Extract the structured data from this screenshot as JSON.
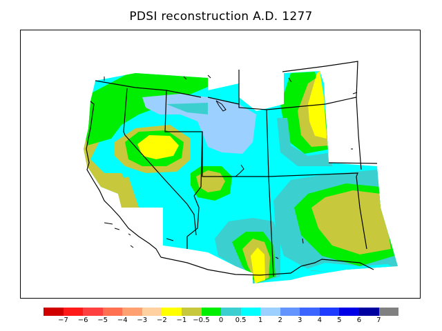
{
  "title": "PDSI reconstruction A.D. 1277",
  "colors": {
    "c_neg7": "#d00000",
    "c_neg6": "#ff1a1a",
    "c_neg5": "#ff4040",
    "c_neg4": "#ff7050",
    "c_neg3": "#ffa070",
    "c_neg2": "#ffd0a0",
    "c_neg1": "#ffff00",
    "c_neg05": "#c8c83c",
    "c_0": "#00ee00",
    "c_05": "#3ccfcf",
    "c_1": "#00ffff",
    "c_2": "#9cd0ff",
    "c_3": "#6495ff",
    "c_4": "#3c64ff",
    "c_5": "#1e3cff",
    "c_6": "#0000e6",
    "c_7": "#0000a0",
    "c_max": "#808080"
  },
  "legend": {
    "swatches": [
      "#d00000",
      "#ff1a1a",
      "#ff4040",
      "#ff7050",
      "#ffa070",
      "#ffd0a0",
      "#ffff00",
      "#c8c83c",
      "#00ee00",
      "#3ccfcf",
      "#00ffff",
      "#9cd0ff",
      "#6495ff",
      "#3c64ff",
      "#1e3cff",
      "#0000e6",
      "#0000a0",
      "#808080"
    ],
    "labels": [
      "−7",
      "−6",
      "−5",
      "−4",
      "−3",
      "−2",
      "−1",
      "−0.5",
      "0",
      "0.5",
      "1",
      "2",
      "3",
      "4",
      "5",
      "6",
      "7"
    ]
  }
}
